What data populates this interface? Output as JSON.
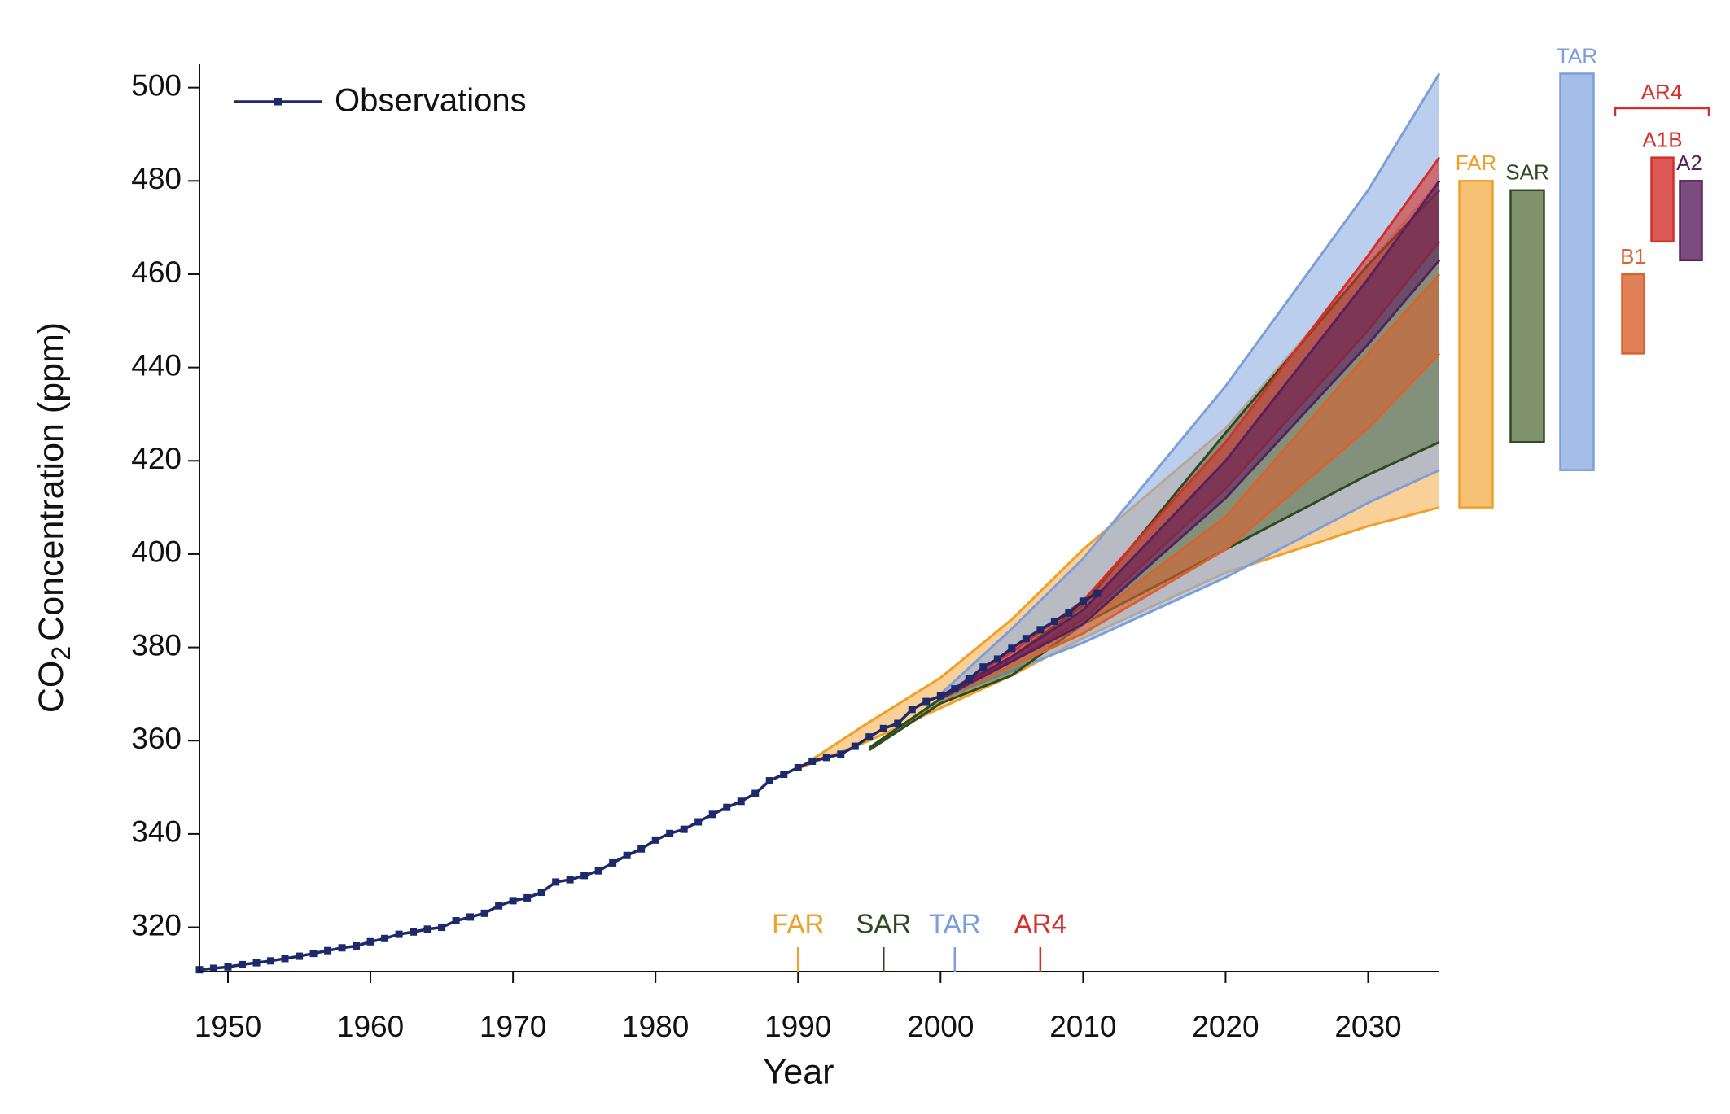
{
  "chart_data": {
    "type": "line",
    "ylabel_parts": [
      "CO",
      "2",
      "Concentration (ppm)"
    ],
    "xlabel": "Year",
    "xlim": [
      1948,
      2035
    ],
    "ylim": [
      310.5,
      505
    ],
    "xticks": [
      1950,
      1960,
      1970,
      1980,
      1990,
      2000,
      2010,
      2020,
      2030
    ],
    "yticks": [
      320,
      340,
      360,
      380,
      400,
      420,
      440,
      460,
      480,
      500
    ],
    "legend": "upper left",
    "observations": {
      "name": "Observations",
      "color": "#1c2a6b",
      "x": [
        1948,
        1949,
        1950,
        1951,
        1952,
        1953,
        1954,
        1955,
        1956,
        1957,
        1958,
        1959,
        1960,
        1961,
        1962,
        1963,
        1964,
        1965,
        1966,
        1967,
        1968,
        1969,
        1970,
        1971,
        1972,
        1973,
        1974,
        1975,
        1976,
        1977,
        1978,
        1979,
        1980,
        1981,
        1982,
        1983,
        1984,
        1985,
        1986,
        1987,
        1988,
        1989,
        1990,
        1991,
        1992,
        1993,
        1994,
        1995,
        1996,
        1997,
        1998,
        1999,
        2000,
        2001,
        2002,
        2003,
        2004,
        2005,
        2006,
        2007,
        2008,
        2009,
        2010,
        2011
      ],
      "values": [
        310.9,
        311.2,
        311.5,
        312.0,
        312.4,
        312.8,
        313.3,
        313.8,
        314.4,
        315.0,
        315.6,
        316.0,
        316.9,
        317.6,
        318.5,
        319.0,
        319.6,
        320.0,
        321.4,
        322.2,
        323.0,
        324.6,
        325.7,
        326.3,
        327.5,
        329.7,
        330.2,
        331.1,
        332.1,
        333.8,
        335.4,
        336.8,
        338.7,
        340.1,
        341.0,
        342.6,
        344.2,
        345.7,
        347.0,
        348.7,
        351.4,
        352.8,
        354.2,
        355.6,
        356.4,
        357.1,
        358.8,
        360.8,
        362.6,
        363.7,
        366.7,
        368.4,
        369.6,
        371.1,
        373.2,
        375.8,
        377.5,
        379.8,
        381.9,
        383.8,
        385.6,
        387.4,
        389.9,
        391.6
      ]
    },
    "series": [
      {
        "name": "FAR",
        "color": "#f5b152",
        "edge": "#f0a02a",
        "x": [
          1990,
          1995,
          2000,
          2005,
          2010,
          2020,
          2030,
          2035
        ],
        "lower": [
          354,
          360,
          367,
          374,
          382,
          396,
          406,
          410
        ],
        "upper": [
          354,
          364,
          373.5,
          386,
          401,
          427,
          462,
          480
        ]
      },
      {
        "name": "TAR",
        "color": "#8eaee3",
        "edge": "#7d9fd8",
        "x": [
          2000,
          2005,
          2010,
          2020,
          2030,
          2035
        ],
        "lower": [
          369,
          375,
          381,
          395,
          411,
          418
        ],
        "upper": [
          370,
          384,
          399,
          436,
          478,
          503
        ]
      },
      {
        "name": "SAR",
        "color": "#5f7549",
        "edge": "#2f4a1f",
        "x": [
          1995,
          2000,
          2005,
          2010,
          2020,
          2030,
          2035
        ],
        "lower": [
          358,
          368,
          374,
          385,
          401,
          417,
          424
        ],
        "upper": [
          358.5,
          369,
          378,
          389,
          426,
          462,
          478
        ]
      },
      {
        "name": "B1",
        "color": "#d9622e",
        "edge": "#d9622e",
        "x": [
          2000,
          2005,
          2010,
          2020,
          2030,
          2035
        ],
        "lower": [
          369,
          376,
          383,
          401,
          427,
          443
        ],
        "upper": [
          369.5,
          377,
          385,
          408,
          443,
          460
        ]
      },
      {
        "name": "A1B",
        "color": "#d4302a",
        "edge": "#d4302a",
        "x": [
          2000,
          2005,
          2010,
          2020,
          2030,
          2035
        ],
        "lower": [
          369,
          377,
          386,
          414,
          448,
          467
        ],
        "upper": [
          369.5,
          379,
          390,
          424,
          464,
          485
        ]
      },
      {
        "name": "A2",
        "color": "#5a1f5e",
        "edge": "#5a1f5e",
        "x": [
          2000,
          2005,
          2010,
          2020,
          2030,
          2035
        ],
        "lower": [
          369,
          377,
          385,
          412,
          445,
          463
        ],
        "upper": [
          369.5,
          378,
          388,
          420,
          459,
          480
        ]
      }
    ],
    "group_label": "AR4",
    "report_markers": [
      {
        "label": "FAR",
        "year": 1990,
        "color": "#f0a02a"
      },
      {
        "label": "SAR",
        "year": 1996,
        "color": "#2f4a1f"
      },
      {
        "label": "TAR",
        "year": 2001,
        "color": "#7d9fd8"
      },
      {
        "label": "AR4",
        "year": 2007,
        "color": "#d4302a"
      }
    ]
  }
}
